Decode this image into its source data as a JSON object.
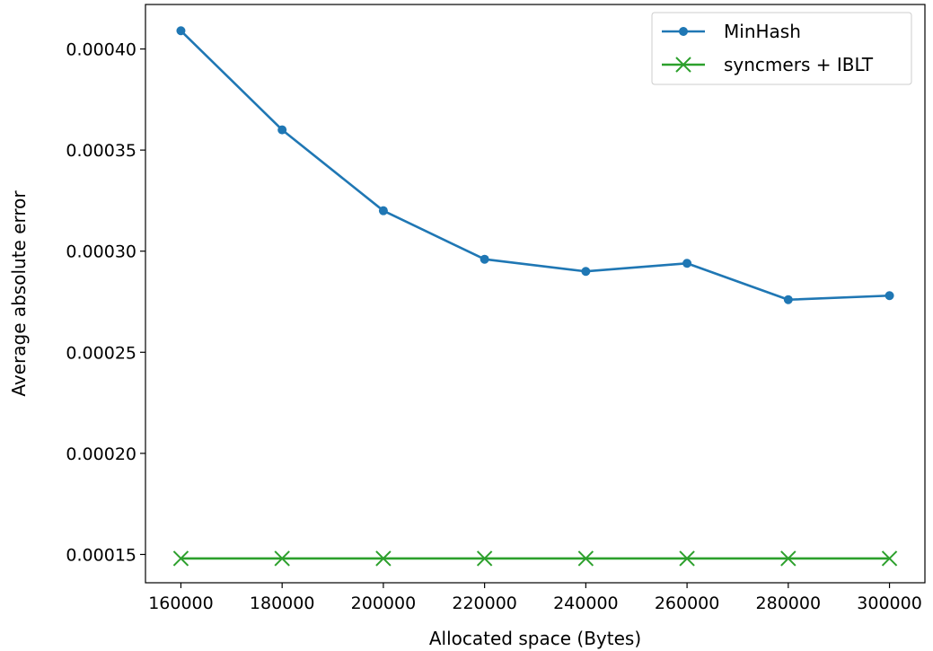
{
  "chart_data": {
    "type": "line",
    "title": "",
    "xlabel": "Allocated space (Bytes)",
    "ylabel": "Average absolute error",
    "x": [
      160000,
      180000,
      200000,
      220000,
      240000,
      260000,
      280000,
      300000
    ],
    "xticks": [
      160000,
      180000,
      200000,
      220000,
      240000,
      260000,
      280000,
      300000
    ],
    "xtick_labels": [
      "160000",
      "180000",
      "200000",
      "220000",
      "240000",
      "260000",
      "280000",
      "300000"
    ],
    "yticks": [
      0.00015,
      0.0002,
      0.00025,
      0.0003,
      0.00035,
      0.0004
    ],
    "ytick_labels": [
      "0.00015",
      "0.00020",
      "0.00025",
      "0.00030",
      "0.00035",
      "0.00040"
    ],
    "xlim": [
      153000,
      307000
    ],
    "ylim": [
      0.000136,
      0.000422
    ],
    "grid": false,
    "legend_position": "top-right",
    "series": [
      {
        "name": "MinHash",
        "color": "#1f77b4",
        "marker": "circle",
        "values": [
          0.000409,
          0.00036,
          0.00032,
          0.000296,
          0.00029,
          0.000294,
          0.000276,
          0.000278
        ]
      },
      {
        "name": "syncmers + IBLT",
        "color": "#2ca02c",
        "marker": "x",
        "values": [
          0.000148,
          0.000148,
          0.000148,
          0.000148,
          0.000148,
          0.000148,
          0.000148,
          0.000148
        ]
      }
    ]
  }
}
